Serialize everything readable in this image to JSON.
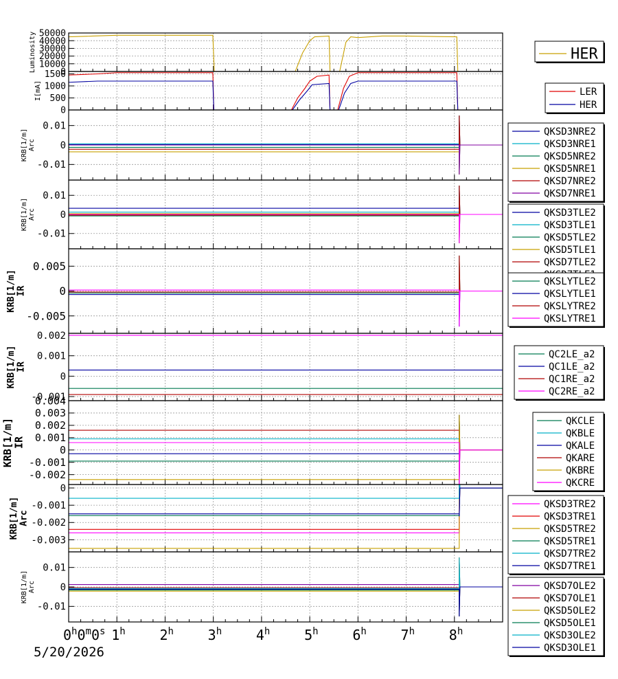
{
  "date": "5/20/2026",
  "x_axis": {
    "unit": "hours",
    "range": [
      0,
      9
    ],
    "ticks": [
      {
        "value": 0,
        "main": "0",
        "sup": "h",
        "extra": [
          [
            "0",
            "m"
          ],
          [
            "0",
            "s"
          ]
        ]
      },
      {
        "value": 1,
        "main": "1",
        "sup": "h"
      },
      {
        "value": 2,
        "main": "2",
        "sup": "h"
      },
      {
        "value": 3,
        "main": "3",
        "sup": "h"
      },
      {
        "value": 4,
        "main": "4",
        "sup": "h"
      },
      {
        "value": 5,
        "main": "5",
        "sup": "h"
      },
      {
        "value": 6,
        "main": "6",
        "sup": "h"
      },
      {
        "value": 7,
        "main": "7",
        "sup": "h"
      },
      {
        "value": 8,
        "main": "8",
        "sup": "h"
      }
    ]
  },
  "colors": {
    "dark_blue": "#0000a0",
    "cyan": "#00b0c8",
    "dark_green": "#007a50",
    "gold": "#c8a000",
    "dark_red": "#b00000",
    "purple": "#8000a0",
    "blue": "#0000ff",
    "red": "#e00000",
    "magenta": "#ff00ff"
  },
  "chart_data": [
    {
      "type": "line",
      "ylabel": [
        "Luminosity"
      ],
      "ylim": [
        0,
        50000
      ],
      "yticks": [
        0,
        10000,
        20000,
        30000,
        40000,
        50000
      ],
      "series": [
        {
          "name": "HER",
          "color": "#c8a000",
          "points": [
            [
              0,
              45000
            ],
            [
              0.5,
              46000
            ],
            [
              1,
              47000
            ],
            [
              2,
              47000
            ],
            [
              2.99,
              47000
            ],
            [
              3.02,
              0
            ],
            [
              4.7,
              0
            ],
            [
              4.85,
              24000
            ],
            [
              5.0,
              40000
            ],
            [
              5.1,
              45000
            ],
            [
              5.4,
              46000
            ],
            [
              5.42,
              0
            ],
            [
              5.62,
              0
            ],
            [
              5.75,
              38000
            ],
            [
              5.85,
              45000
            ],
            [
              6,
              44000
            ],
            [
              6.5,
              46000
            ],
            [
              7,
              46000
            ],
            [
              8.05,
              45000
            ],
            [
              8.07,
              0
            ],
            [
              9,
              0
            ]
          ]
        }
      ],
      "legend": {
        "position": "right",
        "entries": [
          "HER"
        ]
      }
    },
    {
      "type": "line",
      "ylabel": [
        "I[mA]"
      ],
      "ylim": [
        0,
        1600
      ],
      "yticks": [
        0,
        500,
        1000,
        1500
      ],
      "series": [
        {
          "name": "LER",
          "color": "#e00000",
          "points": [
            [
              0,
              1450
            ],
            [
              0.6,
              1500
            ],
            [
              1,
              1550
            ],
            [
              2.99,
              1550
            ],
            [
              3.01,
              0
            ],
            [
              4.62,
              0
            ],
            [
              4.75,
              500
            ],
            [
              4.9,
              900
            ],
            [
              5.0,
              1200
            ],
            [
              5.15,
              1400
            ],
            [
              5.4,
              1450
            ],
            [
              5.42,
              0
            ],
            [
              5.58,
              0
            ],
            [
              5.7,
              900
            ],
            [
              5.82,
              1400
            ],
            [
              6,
              1550
            ],
            [
              8.05,
              1550
            ],
            [
              8.07,
              0
            ],
            [
              9,
              0
            ]
          ]
        },
        {
          "name": "HER",
          "color": "#0000a0",
          "points": [
            [
              0,
              1150
            ],
            [
              0.6,
              1200
            ],
            [
              2.99,
              1200
            ],
            [
              3.01,
              0
            ],
            [
              4.64,
              0
            ],
            [
              4.78,
              400
            ],
            [
              4.95,
              800
            ],
            [
              5.05,
              1050
            ],
            [
              5.4,
              1100
            ],
            [
              5.42,
              0
            ],
            [
              5.6,
              0
            ],
            [
              5.72,
              700
            ],
            [
              5.85,
              1100
            ],
            [
              6,
              1200
            ],
            [
              8.05,
              1200
            ],
            [
              8.07,
              0
            ],
            [
              9,
              0
            ]
          ]
        }
      ],
      "legend": {
        "position": "right",
        "entries": [
          "LER",
          "HER"
        ]
      }
    },
    {
      "type": "line",
      "ylabel": [
        "KRB[1/m]",
        "Arc"
      ],
      "ylim": [
        -0.018,
        0.018
      ],
      "yticks": [
        -0.01,
        0,
        0.01
      ],
      "ytick_labels": [
        "-0.01",
        "0",
        "0.01"
      ],
      "series": [
        {
          "name": "QKSD3NRE2",
          "color": "#0000a0",
          "level": 0.0003,
          "after": 0
        },
        {
          "name": "QKSD3NRE1",
          "color": "#00b0c8",
          "level": 0.0006,
          "after": 0
        },
        {
          "name": "QKSD5NRE2",
          "color": "#007a50",
          "level": -0.0012,
          "after": 0
        },
        {
          "name": "QKSD5NRE1",
          "color": "#c8a000",
          "level": -0.0035,
          "after": 0
        },
        {
          "name": "QKSD7NRE2",
          "color": "#b00000",
          "level": -0.0022,
          "after": 0
        },
        {
          "name": "QKSD7NRE1",
          "color": "#8000a0",
          "level": 0.0,
          "after": 0
        }
      ],
      "legend": {
        "position": "right",
        "entries": [
          "QKSD3NRE2",
          "QKSD3NRE1",
          "QKSD5NRE2",
          "QKSD5NRE1",
          "QKSD7NRE2",
          "QKSD7NRE1"
        ]
      }
    },
    {
      "type": "line",
      "ylabel": [
        "KRB[1/m]",
        "Arc"
      ],
      "ylim": [
        -0.018,
        0.018
      ],
      "yticks": [
        -0.01,
        0,
        0.01
      ],
      "ytick_labels": [
        "-0.01",
        "0",
        "0.01"
      ],
      "series": [
        {
          "name": "QKSD3TLE2",
          "color": "#0000a0",
          "level": 0.0032,
          "after": 0
        },
        {
          "name": "QKSD3TLE1",
          "color": "#00b0c8",
          "level": 0.0012,
          "after": 0
        },
        {
          "name": "QKSD5TLE2",
          "color": "#007a50",
          "level": -0.0008,
          "after": 0
        },
        {
          "name": "QKSD5TLE1",
          "color": "#c8a000",
          "level": 0.0004,
          "after": 0
        },
        {
          "name": "QKSD7TLE2",
          "color": "#b00000",
          "level": -0.0004,
          "after": 0
        },
        {
          "name": "QKSD7TLE1",
          "color": "#ff00ff",
          "level": 0.0,
          "after": 0
        }
      ],
      "legend": {
        "position": "right",
        "entries": [
          "QKSD3TLE2",
          "QKSD3TLE1",
          "QKSD5TLE2",
          "QKSD5TLE1",
          "QKSD7TLE2",
          "QKSD7TLE1"
        ]
      }
    },
    {
      "type": "line",
      "ylabel": [
        "KRB[1/m]",
        "IR"
      ],
      "ylim": [
        -0.0085,
        0.0085
      ],
      "yticks": [
        -0.005,
        0,
        0.005
      ],
      "ytick_labels": [
        "-0.005",
        "0",
        "0.005"
      ],
      "series": [
        {
          "name": "QKSLYTLE2",
          "color": "#007a50",
          "level": -0.0004,
          "after": 0
        },
        {
          "name": "QKSLYTLE1",
          "color": "#0000a0",
          "level": -0.0007,
          "after": 0
        },
        {
          "name": "QKSLYTRE2",
          "color": "#b00000",
          "level": -0.0002,
          "after": 0
        },
        {
          "name": "QKSLYTRE1",
          "color": "#ff00ff",
          "level": 0.0002,
          "after": 0
        }
      ],
      "legend": {
        "position": "right",
        "entries": [
          "QKSLYTLE2",
          "QKSLYTLE1",
          "QKSLYTRE2",
          "QKSLYTRE1"
        ]
      }
    },
    {
      "type": "line",
      "ylabel": [
        "KRB[1/m]",
        "IR"
      ],
      "ylim": [
        -0.0012,
        0.0021
      ],
      "yticks": [
        -0.001,
        0,
        0.001,
        0.002
      ],
      "ytick_labels": [
        "-0.001",
        "0",
        "0.001",
        "0.002"
      ],
      "series": [
        {
          "name": "QC2LE_a2",
          "color": "#007a50",
          "level": -0.0006
        },
        {
          "name": "QC1LE_a2",
          "color": "#0000a0",
          "level": 0.0003
        },
        {
          "name": "QC1RE_a2",
          "color": "#b00000",
          "level": -0.0009
        },
        {
          "name": "QC2RE_a2",
          "color": "#ff00ff",
          "level": 0.002
        }
      ],
      "legend": {
        "position": "right",
        "entries": [
          "QC2LE_a2",
          "QC1LE_a2",
          "QC1RE_a2",
          "QC2RE_a2"
        ]
      }
    },
    {
      "type": "line",
      "ylabel": [
        "KRB[1/m]",
        "IR"
      ],
      "ylim": [
        -0.0028,
        0.004
      ],
      "yticks": [
        -0.002,
        -0.001,
        0,
        0.001,
        0.002,
        0.003,
        0.004
      ],
      "ytick_labels": [
        "-0.002",
        "-0.001",
        "0",
        "0.001",
        "0.002",
        "0.003",
        "0.004"
      ],
      "series": [
        {
          "name": "QKCLE",
          "color": "#007a50",
          "level": -0.0009,
          "after": 0
        },
        {
          "name": "QKBLE",
          "color": "#00b0c8",
          "level": 0.0009,
          "after": 0
        },
        {
          "name": "QKALE",
          "color": "#0000a0",
          "level": -0.0003,
          "after": 0
        },
        {
          "name": "QKARE",
          "color": "#b00000",
          "level": 0.0016,
          "after": 0
        },
        {
          "name": "QKBRE",
          "color": "#c8a000",
          "level": -0.0024,
          "after": 0
        },
        {
          "name": "QKCRE",
          "color": "#ff00ff",
          "level": 0.0006,
          "after": 0
        }
      ],
      "legend": {
        "position": "right",
        "entries": [
          "QKCLE",
          "QKBLE",
          "QKALE",
          "QKARE",
          "QKBRE",
          "QKCRE"
        ]
      }
    },
    {
      "type": "line",
      "ylabel": [
        "KRB[1/m]",
        "Arc"
      ],
      "ylim": [
        -0.0037,
        0.0002
      ],
      "yticks": [
        -0.003,
        -0.002,
        -0.001,
        0
      ],
      "ytick_labels": [
        "-0.003",
        "-0.002",
        "-0.001",
        "0"
      ],
      "series": [
        {
          "name": "QKSD3TRE2",
          "color": "#ff00ff",
          "level": -0.0026,
          "after": 0
        },
        {
          "name": "QKSD3TRE1",
          "color": "#e00000",
          "level": -0.0024,
          "after": 0
        },
        {
          "name": "QKSD5TRE2",
          "color": "#c8a000",
          "level": -0.0035,
          "after": 0
        },
        {
          "name": "QKSD5TRE1",
          "color": "#007a50",
          "level": -0.0016,
          "after": 0
        },
        {
          "name": "QKSD7TRE2",
          "color": "#00b0c8",
          "level": -0.0006,
          "after": 0
        },
        {
          "name": "QKSD7TRE1",
          "color": "#0000a0",
          "level": -0.0015,
          "after": 0
        }
      ],
      "legend": {
        "position": "right",
        "entries": [
          "QKSD3TRE2",
          "QKSD3TRE1",
          "QKSD5TRE2",
          "QKSD5TRE1",
          "QKSD7TRE2",
          "QKSD7TRE1"
        ]
      }
    },
    {
      "type": "line",
      "ylabel": [
        "KRB[1/m]",
        "Arc"
      ],
      "ylim": [
        -0.018,
        0.018
      ],
      "yticks": [
        -0.01,
        0,
        0.01
      ],
      "ytick_labels": [
        "-0.01",
        "0",
        "0.01"
      ],
      "series": [
        {
          "name": "QKSD7OLE2",
          "color": "#8000a0",
          "level": 0.0012,
          "after": 0
        },
        {
          "name": "QKSD7OLE1",
          "color": "#b00000",
          "level": -0.0004,
          "after": 0
        },
        {
          "name": "QKSD5OLE2",
          "color": "#c8a000",
          "level": -0.0022,
          "after": 0
        },
        {
          "name": "QKSD5OLE1",
          "color": "#007a50",
          "level": -0.0016,
          "after": 0
        },
        {
          "name": "QKSD3OLE2",
          "color": "#00b0c8",
          "level": -0.0008,
          "after": 0
        },
        {
          "name": "QKSD3OLE1",
          "color": "#0000a0",
          "level": -0.0012,
          "after": 0
        }
      ],
      "legend": {
        "position": "right",
        "entries": [
          "QKSD7OLE2",
          "QKSD7OLE1",
          "QKSD5OLE2",
          "QKSD5OLE1",
          "QKSD3OLE2",
          "QKSD3OLE1"
        ]
      }
    }
  ]
}
